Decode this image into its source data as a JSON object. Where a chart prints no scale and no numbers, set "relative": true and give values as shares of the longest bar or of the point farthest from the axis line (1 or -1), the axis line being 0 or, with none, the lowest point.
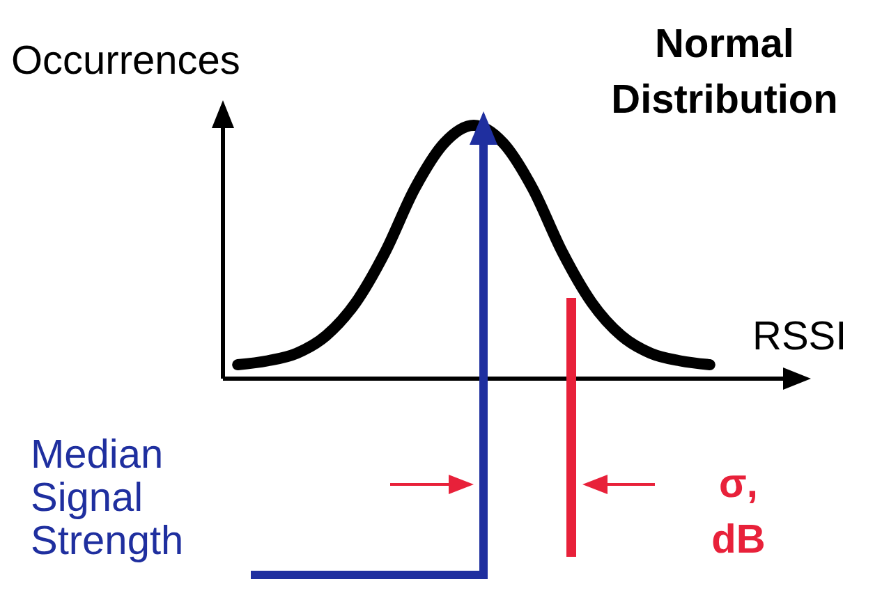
{
  "chart_data": {
    "type": "line",
    "title": "Normal Distribution",
    "xlabel": "RSSI",
    "ylabel": "Occurrences",
    "relative": true,
    "grid": false,
    "line_style": "solid",
    "categories": [
      null,
      null,
      null,
      null,
      null,
      null,
      null,
      null,
      null,
      null,
      null,
      null,
      null,
      null,
      null,
      null,
      null
    ],
    "series": [
      {
        "color": "#000000",
        "values": [
          0.055,
          0.07,
          0.1,
          0.17,
          0.3,
          0.5,
          0.75,
          0.93,
          1,
          0.93,
          0.75,
          0.5,
          0.3,
          0.17,
          0.1,
          0.07,
          0.055
        ]
      }
    ],
    "annotations": [
      "Median Signal Strength",
      "σ, dB"
    ]
  }
}
